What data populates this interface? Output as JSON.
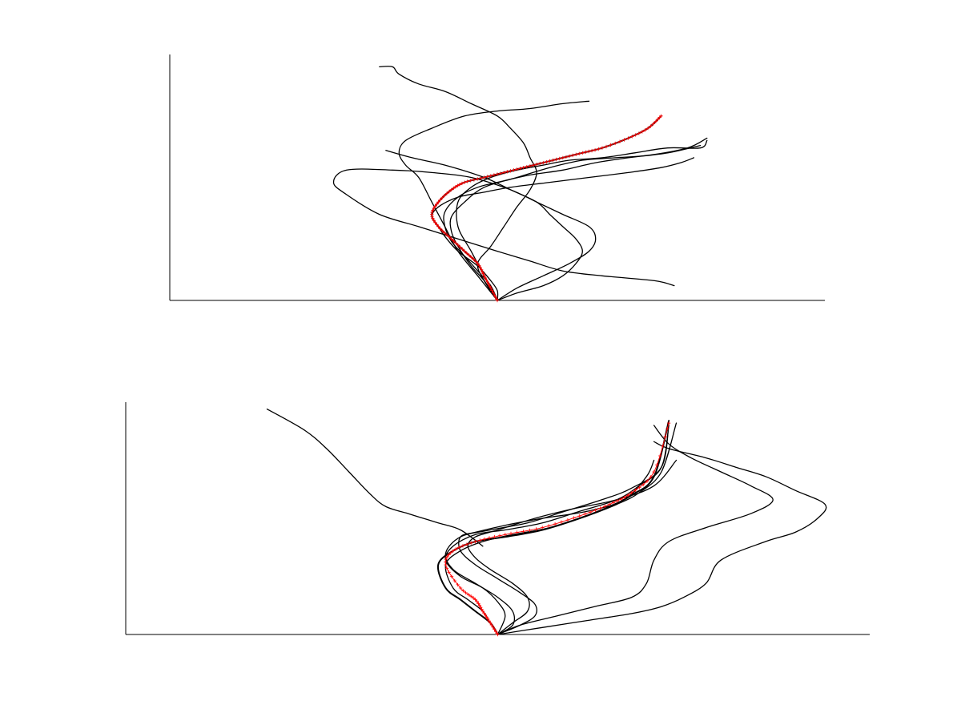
{
  "chart_data": [
    {
      "type": "line",
      "title": "",
      "xlabel": "",
      "ylabel": "",
      "grid": false,
      "legend": "none",
      "xlim": [
        0,
        100
      ],
      "ylim": [
        0,
        100
      ],
      "line_color": "#000000",
      "reference_color": "#ff0000",
      "reference_marker": "plus",
      "series": [
        {
          "x": [
            50,
            49,
            48,
            47,
            45,
            43,
            41,
            40,
            41,
            43,
            45,
            48,
            51,
            54,
            57,
            60,
            63,
            66,
            70,
            73,
            75
          ],
          "y": [
            0,
            5,
            10,
            15,
            20,
            25,
            30,
            35,
            40,
            45,
            48,
            50,
            52,
            54,
            56,
            58,
            60,
            62,
            66,
            70,
            75
          ]
        },
        {
          "x": [
            50,
            48,
            46,
            44,
            44,
            46,
            49,
            53,
            57,
            61,
            66,
            71,
            76,
            81,
            82
          ],
          "y": [
            0,
            10,
            20,
            30,
            40,
            46,
            50,
            53,
            55,
            57,
            58,
            60,
            62,
            62,
            65
          ]
        },
        {
          "x": [
            50,
            47,
            44,
            42,
            40,
            38,
            36,
            35,
            36,
            40,
            45,
            50,
            55,
            60,
            64
          ],
          "y": [
            0,
            10,
            20,
            30,
            40,
            50,
            55,
            60,
            65,
            70,
            75,
            77,
            78,
            80,
            81
          ]
        },
        {
          "x": [
            50,
            48,
            47,
            49,
            51,
            53,
            55,
            56,
            55,
            54,
            52,
            50,
            46,
            42,
            38,
            35,
            34,
            32
          ],
          "y": [
            0,
            8,
            15,
            22,
            30,
            38,
            45,
            52,
            58,
            64,
            70,
            75,
            80,
            85,
            88,
            92,
            95,
            95
          ]
        },
        {
          "x": [
            50,
            53,
            57,
            61,
            64,
            65,
            64,
            60,
            56,
            52,
            46,
            40,
            34,
            27,
            25,
            27,
            32,
            38,
            44,
            50,
            55,
            60,
            66,
            74,
            77
          ],
          "y": [
            0,
            5,
            10,
            15,
            20,
            25,
            30,
            35,
            40,
            45,
            50,
            52,
            53,
            53,
            48,
            43,
            35,
            30,
            25,
            20,
            16,
            12,
            10,
            8,
            6
          ]
        },
        {
          "x": [
            50,
            50,
            49,
            47,
            44,
            42,
            41,
            40,
            41,
            44,
            48,
            52,
            58,
            64,
            70,
            75,
            78,
            80
          ],
          "y": [
            0,
            4,
            8,
            14,
            20,
            26,
            30,
            34,
            38,
            42,
            44,
            46,
            48,
            50,
            52,
            54,
            56,
            58
          ]
        },
        {
          "x": [
            50,
            48,
            46,
            44,
            43,
            43,
            45,
            48,
            53,
            58,
            63,
            68,
            73,
            79,
            82
          ],
          "y": [
            0,
            8,
            14,
            22,
            28,
            34,
            40,
            46,
            50,
            54,
            57,
            58,
            59,
            62,
            66
          ]
        },
        {
          "x": [
            50,
            49,
            47,
            45,
            43,
            42,
            42,
            44,
            47,
            50,
            55,
            60,
            65,
            70,
            76,
            81
          ],
          "y": [
            0,
            6,
            12,
            18,
            24,
            30,
            36,
            42,
            46,
            48,
            51,
            53,
            56,
            58,
            60,
            63
          ]
        },
        {
          "x": [
            50,
            53,
            57,
            60,
            62,
            63,
            62,
            60,
            58,
            56,
            52,
            48,
            42,
            37,
            33
          ],
          "y": [
            0,
            3,
            6,
            10,
            15,
            20,
            25,
            30,
            35,
            40,
            45,
            50,
            55,
            58,
            61
          ]
        }
      ],
      "reference": {
        "x": [
          50,
          49,
          48,
          47,
          45,
          43,
          41,
          40,
          41,
          43,
          45,
          48,
          51,
          54,
          57,
          60,
          63,
          66,
          70,
          73,
          75
        ],
        "y": [
          0,
          5,
          10,
          15,
          20,
          25,
          30,
          35,
          40,
          45,
          48,
          50,
          52,
          54,
          56,
          58,
          60,
          62,
          66,
          70,
          75
        ]
      }
    },
    {
      "type": "line",
      "title": "",
      "xlabel": "",
      "ylabel": "",
      "grid": false,
      "legend": "none",
      "xlim": [
        0,
        100
      ],
      "ylim": [
        0,
        100
      ],
      "line_color": "#000000",
      "reference_color": "#ff0000",
      "reference_marker": "plus",
      "series": [
        {
          "x": [
            50,
            49,
            47,
            45,
            43,
            42,
            44,
            47,
            51,
            56,
            61,
            65,
            68,
            71,
            73
          ],
          "y": [
            0,
            5,
            10,
            15,
            20,
            30,
            36,
            40,
            42,
            45,
            50,
            55,
            60,
            68,
            92
          ]
        },
        {
          "x": [
            50,
            49,
            48,
            46,
            44,
            43,
            45,
            48,
            52,
            57,
            62,
            66,
            69,
            72,
            74
          ],
          "y": [
            0,
            5,
            10,
            15,
            20,
            30,
            36,
            40,
            43,
            46,
            51,
            56,
            61,
            70,
            91
          ]
        },
        {
          "x": [
            50,
            51,
            50,
            48,
            45,
            43,
            44,
            47,
            51,
            56,
            61,
            66,
            69,
            72,
            73
          ],
          "y": [
            0,
            8,
            14,
            20,
            25,
            32,
            38,
            43,
            45,
            48,
            53,
            58,
            64,
            72,
            90
          ]
        },
        {
          "x": [
            50,
            52,
            52,
            50,
            47,
            44,
            43,
            45,
            49,
            54,
            59,
            64,
            68,
            72,
            73
          ],
          "y": [
            0,
            4,
            10,
            16,
            22,
            28,
            35,
            42,
            45,
            48,
            53,
            58,
            63,
            72,
            91
          ]
        },
        {
          "x": [
            50,
            53,
            55,
            55,
            53,
            50,
            47,
            45,
            45,
            47,
            51,
            56,
            62,
            67,
            70,
            71
          ],
          "y": [
            0,
            4,
            8,
            13,
            18,
            24,
            30,
            36,
            42,
            44,
            47,
            50,
            53,
            58,
            68,
            75
          ]
        },
        {
          "x": [
            50,
            53,
            58,
            63,
            68,
            70,
            71,
            73,
            78,
            84,
            87,
            84,
            80,
            76,
            73,
            71
          ],
          "y": [
            0,
            4,
            8,
            12,
            16,
            22,
            32,
            40,
            46,
            52,
            58,
            64,
            70,
            76,
            82,
            90
          ]
        },
        {
          "x": [
            50,
            56,
            62,
            68,
            72,
            75,
            78,
            80,
            86,
            90,
            93,
            94,
            90,
            86,
            82,
            78,
            73,
            71
          ],
          "y": [
            0,
            3,
            6,
            9,
            12,
            16,
            22,
            32,
            40,
            44,
            50,
            56,
            62,
            68,
            72,
            76,
            80,
            83
          ]
        },
        {
          "x": [
            48,
            45,
            42,
            40,
            38,
            35,
            33,
            30,
            27,
            24,
            19
          ],
          "y": [
            38,
            45,
            48,
            50,
            52,
            55,
            60,
            70,
            80,
            88,
            97
          ]
        },
        {
          "x": [
            50,
            52,
            54,
            54,
            52,
            49,
            47,
            46,
            47,
            50,
            55,
            60,
            66,
            71,
            74
          ],
          "y": [
            0,
            5,
            10,
            16,
            22,
            28,
            33,
            38,
            42,
            45,
            50,
            54,
            58,
            64,
            75
          ]
        }
      ],
      "reference": {
        "x": [
          50,
          49,
          48,
          47,
          45,
          43,
          44,
          47,
          51,
          56,
          61,
          65,
          68,
          71,
          73
        ],
        "y": [
          0,
          5,
          10,
          15,
          20,
          30,
          36,
          40,
          43,
          46,
          51,
          56,
          61,
          70,
          91
        ]
      }
    }
  ]
}
